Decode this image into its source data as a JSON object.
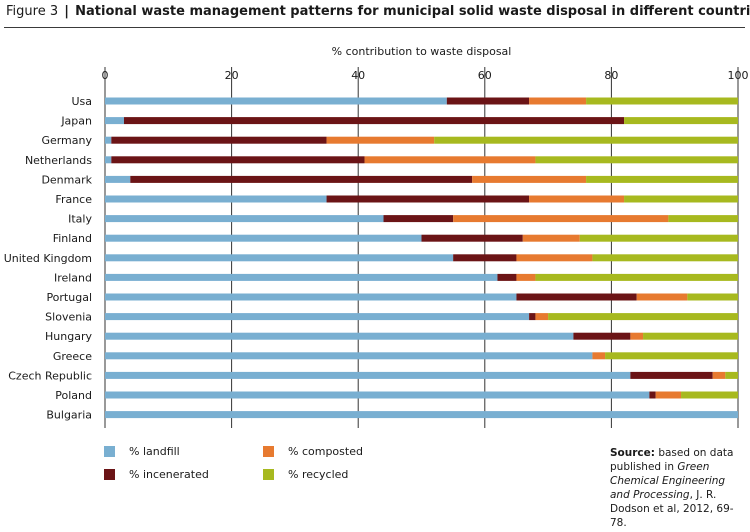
{
  "figure": {
    "number": "Figure 3",
    "separator": "|",
    "title": "National waste management patterns for municipal solid waste disposal in different countries"
  },
  "colors": {
    "landfill": "#79afd1",
    "incenerated": "#6b1416",
    "composted": "#e77a30",
    "recycled": "#a7b91f",
    "grid": "#333333",
    "axis": "#333333"
  },
  "chart_data": {
    "type": "bar",
    "orientation": "horizontal",
    "stacked": true,
    "title": "",
    "xlabel": "% contribution to waste disposal",
    "ylabel": "",
    "xlim": [
      0,
      100
    ],
    "xticks": [
      0,
      20,
      40,
      60,
      80,
      100
    ],
    "grid": true,
    "legend_placement": "bottom-left",
    "categories": [
      "Usa",
      "Japan",
      "Germany",
      "Netherlands",
      "Denmark",
      "France",
      "Italy",
      "Finland",
      "United Kingdom",
      "Ireland",
      "Portugal",
      "Slovenia",
      "Hungary",
      "Greece",
      "Czech Republic",
      "Poland",
      "Bulgaria"
    ],
    "series": [
      {
        "name": "% landfill",
        "key": "landfill",
        "values": [
          54,
          3,
          1,
          1,
          4,
          35,
          44,
          50,
          55,
          62,
          65,
          67,
          74,
          77,
          83,
          86,
          100
        ]
      },
      {
        "name": "% incenerated",
        "key": "incenerated",
        "values": [
          13,
          79,
          34,
          40,
          54,
          32,
          11,
          16,
          10,
          3,
          19,
          1,
          9,
          0,
          13,
          1,
          0
        ]
      },
      {
        "name": "% composted",
        "key": "composted",
        "values": [
          9,
          0,
          17,
          27,
          18,
          15,
          34,
          9,
          12,
          3,
          8,
          2,
          2,
          2,
          2,
          4,
          0
        ]
      },
      {
        "name": "% recycled",
        "key": "recycled",
        "values": [
          24,
          18,
          48,
          32,
          24,
          18,
          11,
          25,
          23,
          32,
          8,
          30,
          15,
          21,
          2,
          9,
          0
        ]
      }
    ]
  },
  "legend": {
    "items": [
      {
        "label": "% landfill",
        "key": "landfill"
      },
      {
        "label": "% composted",
        "key": "composted"
      },
      {
        "label": "% incenerated",
        "key": "incenerated"
      },
      {
        "label": "% recycled",
        "key": "recycled"
      }
    ]
  },
  "source": {
    "label": "Source:",
    "text_before": "based on data published in",
    "italic": "Green Chemical Engineering and Processing",
    "text_after": ", J. R. Dodson et al, 2012, 69-78."
  }
}
